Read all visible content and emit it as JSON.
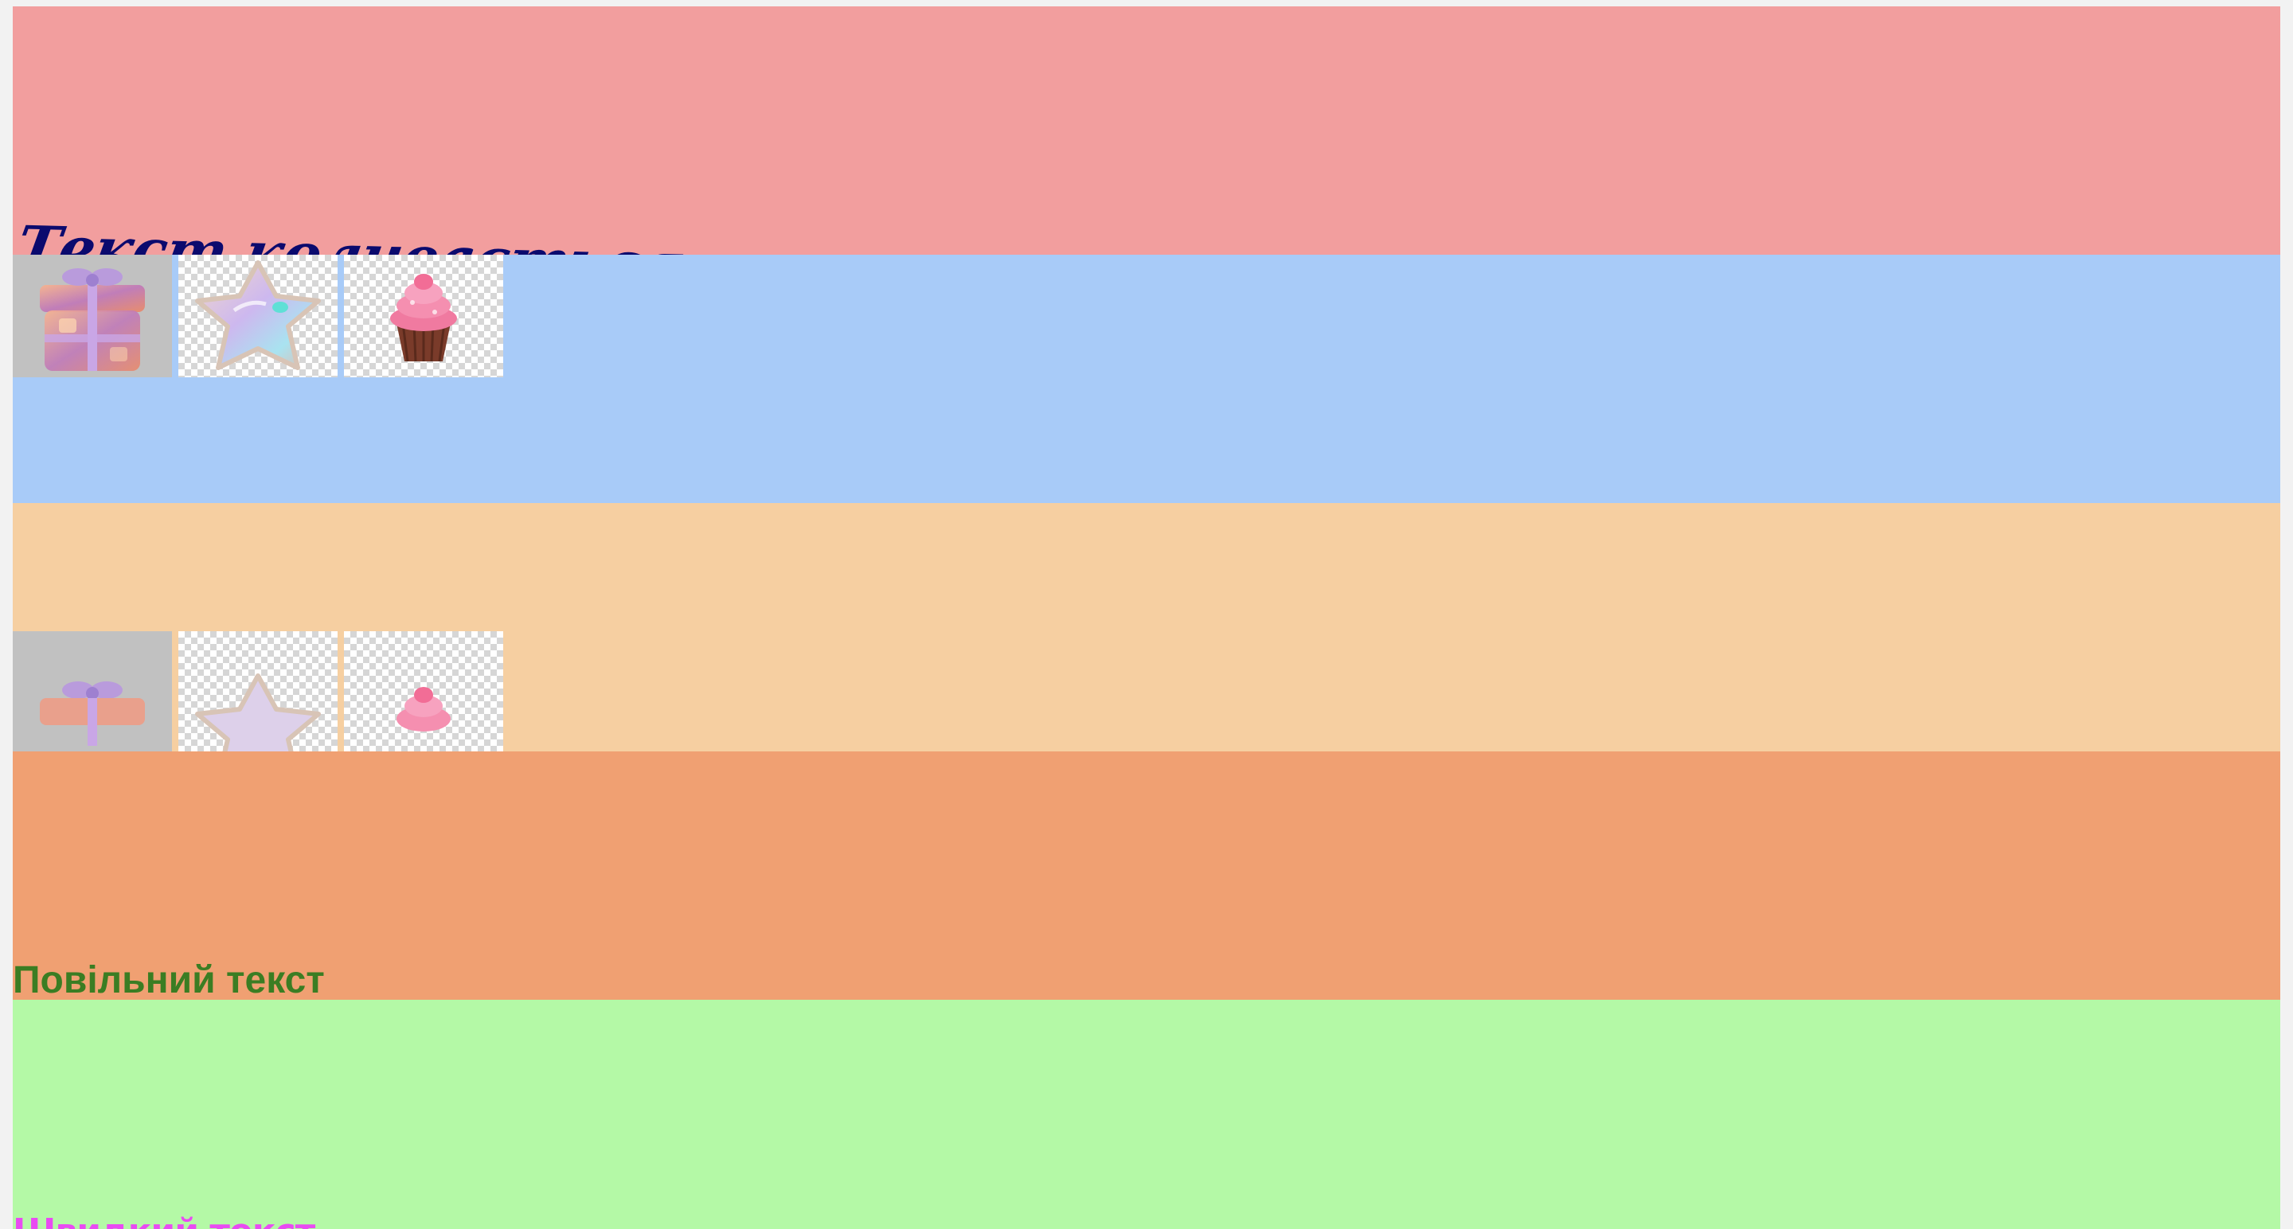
{
  "colors": {
    "page_background": "#f2f2f2",
    "band_1": "#f29e9e",
    "band_2": "#a8cbf8",
    "band_3": "#f6cfa1",
    "band_4": "#f0a072",
    "band_5": "#b4f9a6",
    "wobble_text": "#0b0a6e",
    "slow_text": "#3b7d23",
    "fast_text": "#e94bf2"
  },
  "bands": [
    {
      "text": "Текст коливається вгору-вниз"
    },
    {
      "images": [
        "gift-icon",
        "star-balloon-icon",
        "cupcake-icon"
      ]
    },
    {
      "images": [
        "gift-icon",
        "star-balloon-icon",
        "cupcake-icon"
      ]
    },
    {
      "text": "Повільний текст"
    },
    {
      "text": "Швидкий текст"
    }
  ]
}
